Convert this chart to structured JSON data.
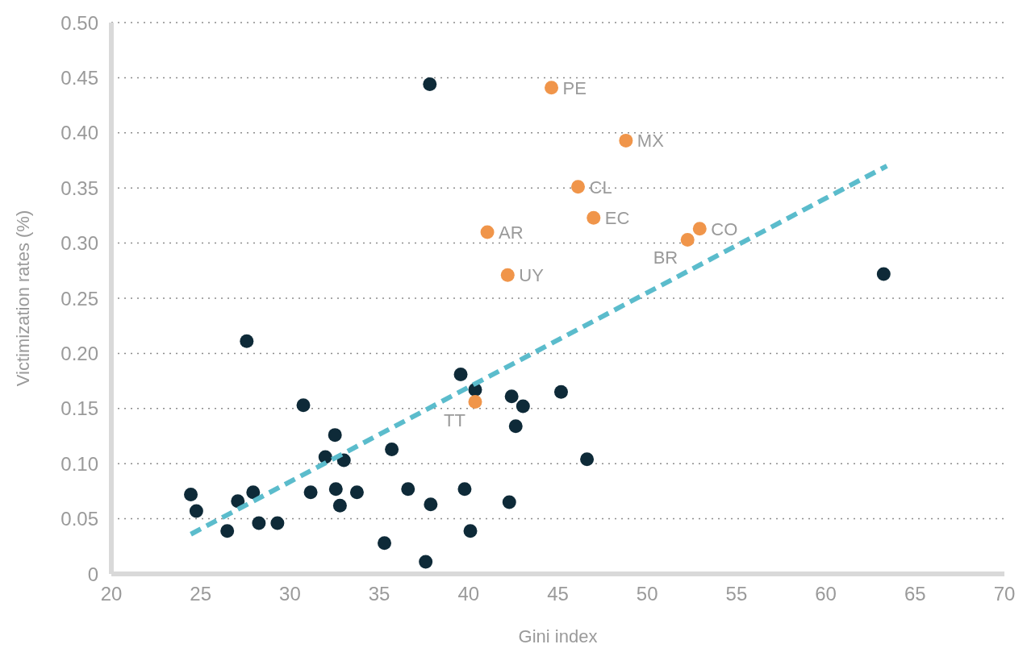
{
  "chart_data": {
    "type": "scatter",
    "xlabel": "Gini index",
    "ylabel": "Victimization rates (%)",
    "xlim": [
      20,
      70
    ],
    "xticks": [
      20,
      25,
      30,
      35,
      40,
      45,
      50,
      55,
      60,
      65,
      70
    ],
    "ylim": [
      0,
      0.5
    ],
    "yticks": [
      0,
      {
        "value": 0.05,
        "label": "0.05"
      },
      {
        "value": 0.1,
        "label": "0.10"
      },
      {
        "value": 0.15,
        "label": "0.15"
      },
      {
        "value": 0.2,
        "label": "0.20"
      },
      {
        "value": 0.25,
        "label": "0.25"
      },
      {
        "value": 0.3,
        "label": "0.30"
      },
      {
        "value": 0.35,
        "label": "0.35"
      },
      {
        "value": 0.4,
        "label": "0.40"
      },
      {
        "value": 0.45,
        "label": "0.45"
      },
      {
        "value": 0.5,
        "label": "0.50"
      }
    ],
    "grid": "y",
    "marker": "circle",
    "series": [
      {
        "color": "#0e2a38",
        "x": [
          24.45,
          24.76,
          26.49,
          27.08,
          27.58,
          27.94,
          28.26,
          29.3,
          30.75,
          31.16,
          31.98,
          32.52,
          32.57,
          32.8,
          33.02,
          33.75,
          35.29,
          35.7,
          36.61,
          37.6,
          37.83,
          37.88,
          39.56,
          39.78,
          40.1,
          40.37,
          42.28,
          42.41,
          42.64,
          43.05,
          45.18,
          46.63,
          63.24
        ],
        "values": [
          0.072,
          0.057,
          0.039,
          0.066,
          0.211,
          0.074,
          0.046,
          0.046,
          0.153,
          0.074,
          0.106,
          0.126,
          0.077,
          0.062,
          0.103,
          0.074,
          0.028,
          0.113,
          0.077,
          0.011,
          0.444,
          0.063,
          0.181,
          0.077,
          0.039,
          0.167,
          0.065,
          0.161,
          0.134,
          0.152,
          0.165,
          0.104,
          0.272
        ]
      },
      {
        "color": "#f0954a",
        "x": [
          44.64,
          48.81,
          46.13,
          47.0,
          41.05,
          52.94,
          52.26,
          42.19,
          40.37
        ],
        "values": [
          0.441,
          0.393,
          0.351,
          0.323,
          0.31,
          0.313,
          0.303,
          0.271,
          0.156
        ]
      },
      {
        "type": "line",
        "color": "#5bbccc",
        "line_style": "dashed",
        "marker": "none",
        "x": [
          24.45,
          63.42
        ],
        "values": [
          0.036,
          0.37
        ]
      }
    ],
    "annotations": [
      {
        "text": "PE",
        "x": 44.64,
        "y": 0.441
      },
      {
        "text": "MX",
        "x": 48.81,
        "y": 0.393
      },
      {
        "text": "CL",
        "x": 46.13,
        "y": 0.351
      },
      {
        "text": "EC",
        "x": 47.0,
        "y": 0.323
      },
      {
        "text": "AR",
        "x": 41.05,
        "y": 0.31
      },
      {
        "text": "CO",
        "x": 52.94,
        "y": 0.313
      },
      {
        "text": "BR",
        "x": 52.26,
        "y": 0.303
      },
      {
        "text": "UY",
        "x": 42.19,
        "y": 0.271
      },
      {
        "text": "TT",
        "x": 40.37,
        "y": 0.156
      }
    ]
  }
}
